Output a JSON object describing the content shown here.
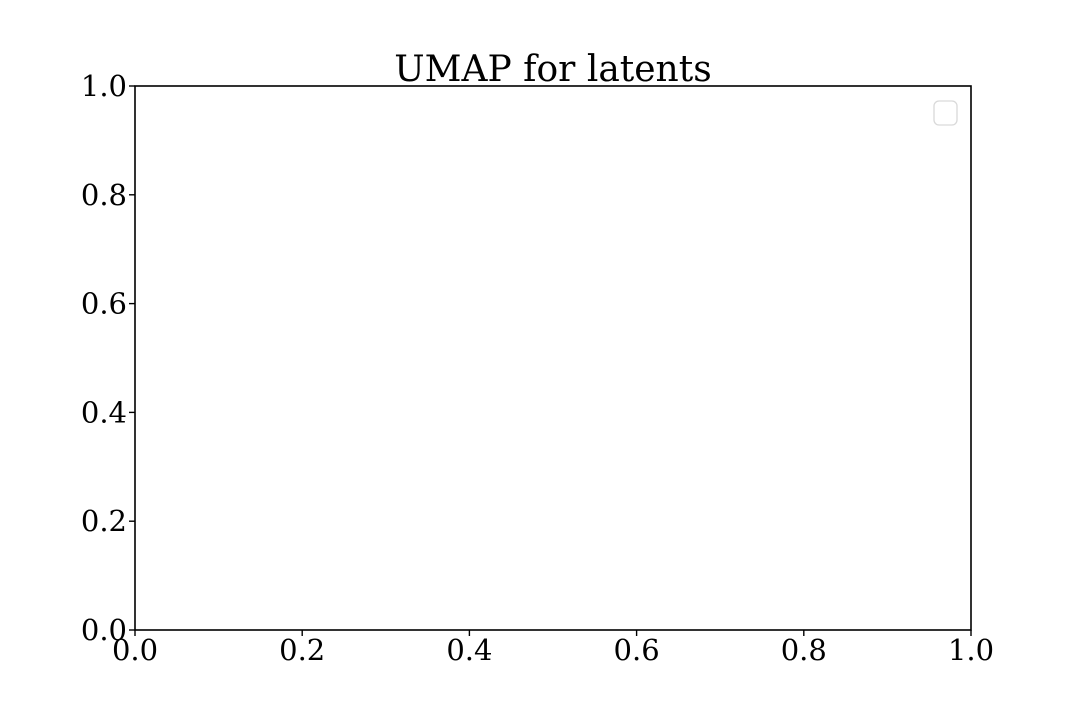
{
  "chart_data": {
    "type": "scatter",
    "title": "UMAP for latents",
    "xlabel": "",
    "ylabel": "",
    "xlim": [
      0.0,
      1.0
    ],
    "ylim": [
      0.0,
      1.0
    ],
    "x_ticks": [
      "0.0",
      "0.2",
      "0.4",
      "0.6",
      "0.8",
      "1.0"
    ],
    "y_ticks": [
      "0.0",
      "0.2",
      "0.4",
      "0.6",
      "0.8",
      "1.0"
    ],
    "series": [],
    "grid": false,
    "legend": {
      "placement": "upper-right",
      "entries": []
    }
  }
}
